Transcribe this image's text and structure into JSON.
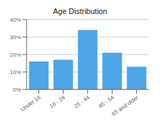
{
  "chart_data": {
    "type": "bar",
    "title": "Age Distribution",
    "categories": [
      "Under 18",
      "18 - 24",
      "25 - 44",
      "45 - 64",
      "65 and older"
    ],
    "values": [
      0.16,
      0.17,
      0.34,
      0.21,
      0.13
    ],
    "color": "#4DA6E8",
    "ylim": [
      0,
      0.4
    ],
    "yticks": [
      {
        "value": 0.0,
        "label": "0%"
      },
      {
        "value": 0.1,
        "label": "10%"
      },
      {
        "value": 0.2,
        "label": "20%"
      },
      {
        "value": 0.3,
        "label": "30%"
      },
      {
        "value": 0.4,
        "label": "40%"
      }
    ],
    "grid": true
  }
}
